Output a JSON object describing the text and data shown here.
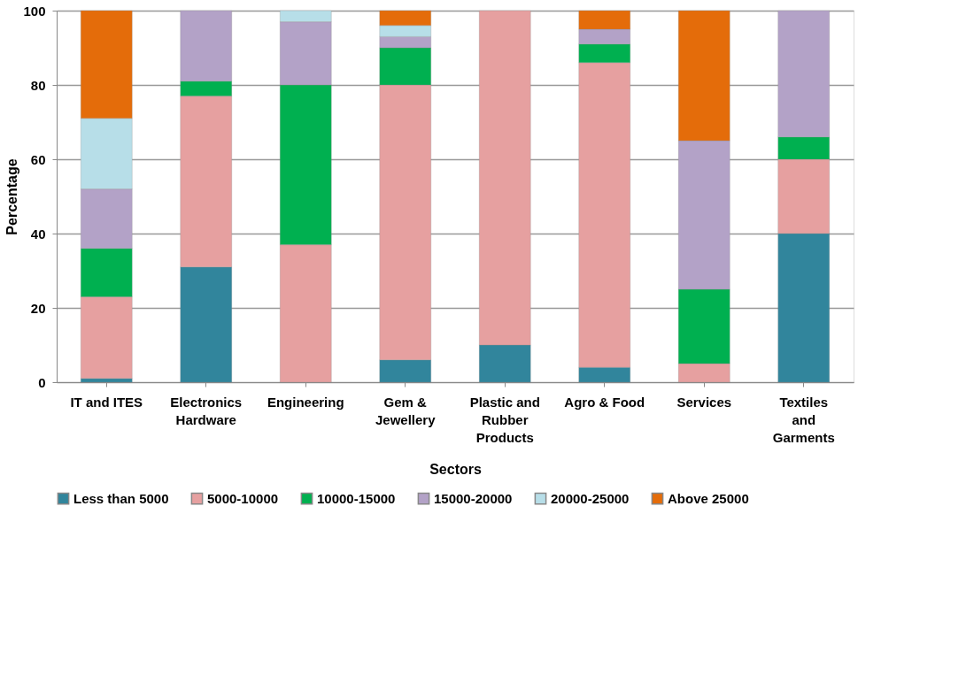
{
  "chart_data": {
    "type": "bar",
    "stacked": true,
    "xlabel": "Sectors",
    "ylabel": "Percentage",
    "categories": [
      "IT and ITES",
      "Electronics Hardware",
      "Engineering",
      "Gem & Jewellery",
      "Plastic and Rubber Products",
      "Agro & Food",
      "Services",
      "Textiles and Garments"
    ],
    "series": [
      {
        "name": "Less than 5000",
        "color": "#31859c",
        "values": [
          1,
          31,
          null,
          6,
          10,
          4,
          null,
          40
        ]
      },
      {
        "name": "5000-10000",
        "color": "#e6a0a0",
        "values": [
          22,
          46,
          37,
          74,
          90,
          82,
          5,
          20
        ]
      },
      {
        "name": "10000-15000",
        "color": "#00b050",
        "values": [
          13,
          4,
          43,
          10,
          null,
          5,
          20,
          6
        ]
      },
      {
        "name": "15000-20000",
        "color": "#b3a2c7",
        "values": [
          16,
          19,
          17,
          3,
          null,
          4,
          40,
          34
        ]
      },
      {
        "name": "20000-25000",
        "color": "#b7dee8",
        "values": [
          19,
          null,
          3,
          3,
          null,
          null,
          null,
          null
        ]
      },
      {
        "name": "Above 25000",
        "color": "#e46c0a",
        "values": [
          29,
          null,
          null,
          4,
          null,
          5,
          35,
          null
        ]
      }
    ],
    "ylim": [
      0,
      100
    ],
    "yticks": [
      0,
      20,
      40,
      60,
      80,
      100
    ],
    "grid": "y",
    "legend": "bottom"
  }
}
